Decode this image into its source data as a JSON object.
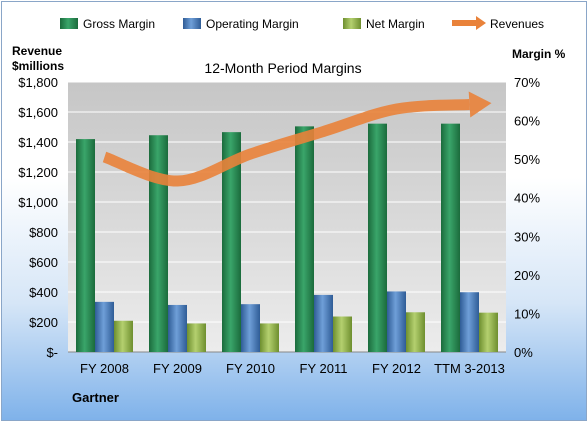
{
  "chart_data": {
    "type": "bar",
    "title": "12-Month Period Margins",
    "categories": [
      "FY 2008",
      "FY 2009",
      "FY 2010",
      "FY 2011",
      "FY 2012",
      "TTM 3-2013"
    ],
    "series": [
      {
        "name": "Gross Margin",
        "axis": "right",
        "color": "#2e8b57",
        "values": [
          55.2,
          56.2,
          57.0,
          58.5,
          59.2,
          59.2
        ]
      },
      {
        "name": "Operating Margin",
        "axis": "right",
        "color": "#4f81bd",
        "values": [
          13.0,
          12.2,
          12.4,
          14.8,
          15.7,
          15.5
        ]
      },
      {
        "name": "Net Margin",
        "axis": "right",
        "color": "#9bbb59",
        "values": [
          8.1,
          7.4,
          7.4,
          9.2,
          10.3,
          10.2
        ]
      }
    ],
    "line_series": {
      "name": "Revenues",
      "axis": "left",
      "color": "#e9823a",
      "values": [
        1300,
        1140,
        1320,
        1470,
        1620,
        1650
      ]
    },
    "left_axis": {
      "label_line1": "Revenue",
      "label_line2": "$millions",
      "ylim": [
        0,
        1800
      ],
      "tick_labels": [
        "$-",
        "$200",
        "$400",
        "$600",
        "$800",
        "$1,000",
        "$1,200",
        "$1,400",
        "$1,600",
        "$1,800"
      ]
    },
    "right_axis": {
      "label": "Margin %",
      "ylim": [
        0,
        70
      ],
      "tick_labels": [
        "0%",
        "10%",
        "20%",
        "30%",
        "40%",
        "50%",
        "60%",
        "70%"
      ]
    },
    "legend_position": "top",
    "grid": true,
    "source": "Gartner"
  }
}
